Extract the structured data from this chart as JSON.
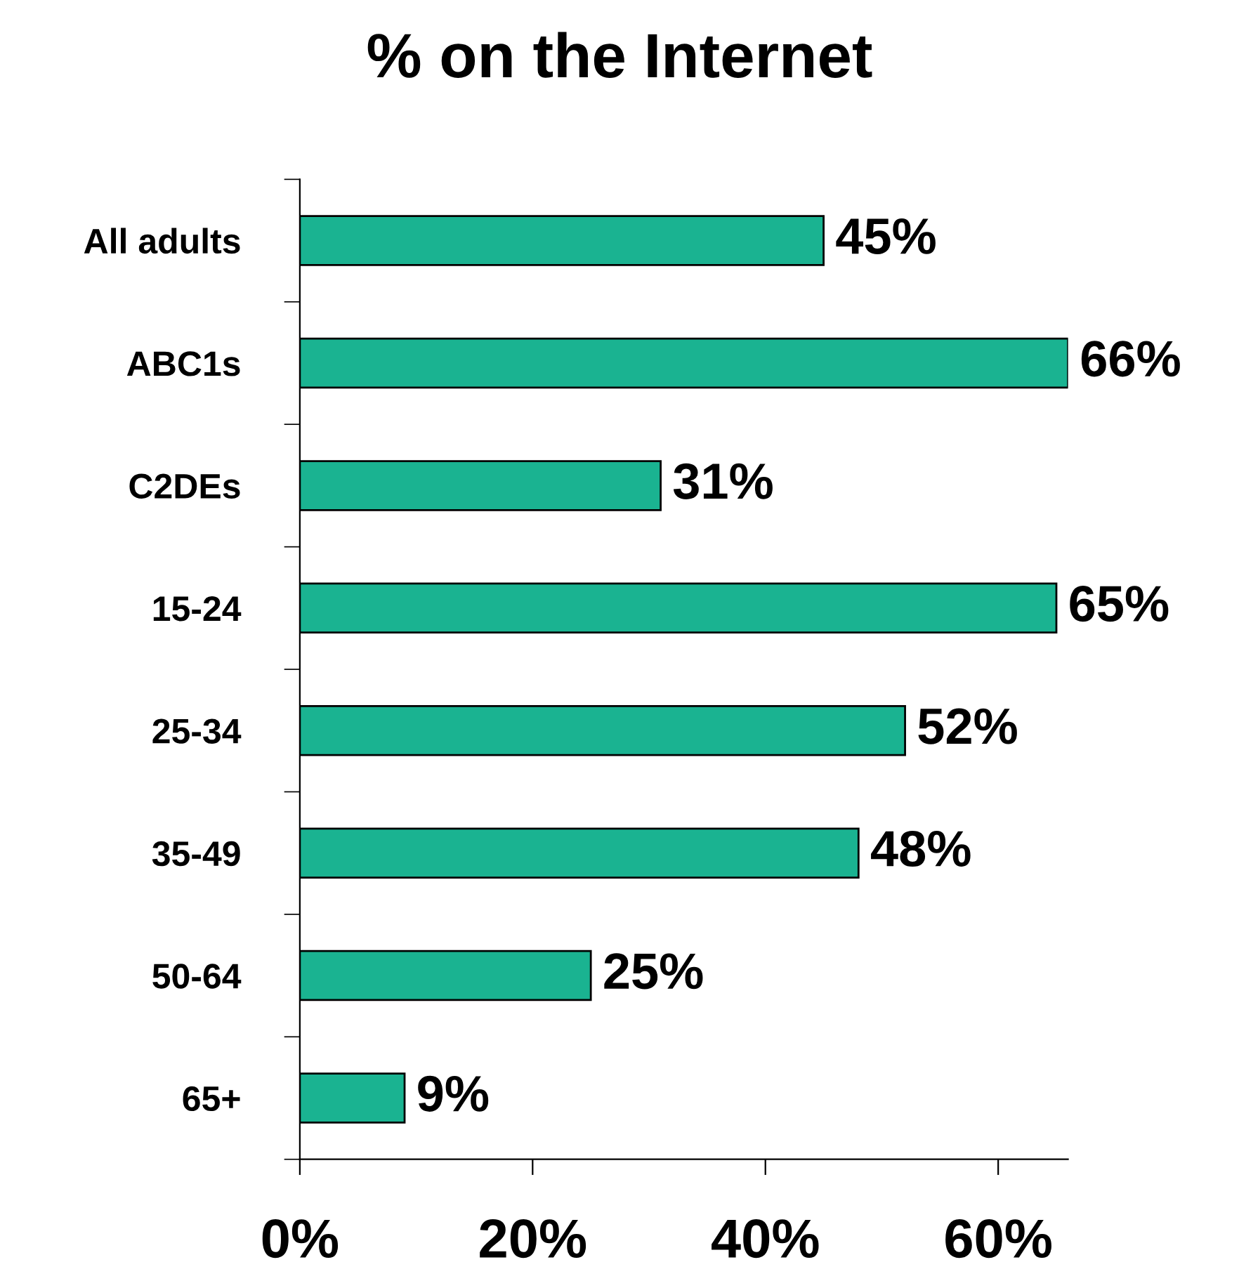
{
  "chart_data": {
    "type": "bar",
    "orientation": "horizontal",
    "title": "% on the Internet",
    "categories": [
      "All adults",
      "ABC1s",
      "C2DEs",
      "15-24",
      "25-34",
      "35-49",
      "50-64",
      "65+"
    ],
    "values": [
      45,
      66,
      31,
      65,
      52,
      48,
      25,
      9
    ],
    "value_labels": [
      "45%",
      "66%",
      "31%",
      "65%",
      "52%",
      "48%",
      "25%",
      "9%"
    ],
    "color": "#1ab391",
    "xlim": [
      0,
      66
    ],
    "xticks": [
      {
        "value": 0,
        "label": "0%"
      },
      {
        "value": 20,
        "label": "20%"
      },
      {
        "value": 40,
        "label": "40%"
      },
      {
        "value": 60,
        "label": "60%"
      }
    ],
    "grid": false,
    "legend": false
  }
}
